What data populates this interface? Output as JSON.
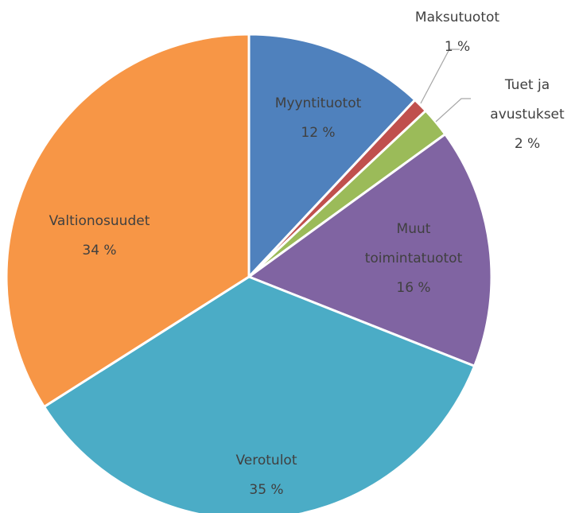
{
  "chart_data": {
    "type": "pie",
    "categories": [
      "Myyntituotot",
      "Maksutuotot",
      "Tuet ja avustukset",
      "Muut toimintatuotot",
      "Verotulot",
      "Valtionosuudet"
    ],
    "values": [
      12,
      1,
      2,
      16,
      35,
      34
    ],
    "value_labels": [
      "12 %",
      "1 %",
      "2 %",
      "16 %",
      "35 %",
      "34 %"
    ],
    "colors": [
      "#4f81bd",
      "#c0504d",
      "#9bbb59",
      "#8064a2",
      "#4bacc6",
      "#f79646"
    ]
  }
}
